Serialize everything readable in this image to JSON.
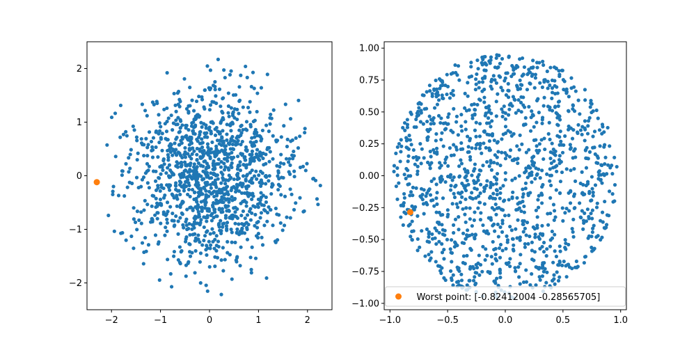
{
  "chart_data": [
    {
      "type": "scatter",
      "name": "left-panel",
      "xlim": [
        -2.5,
        2.5
      ],
      "ylim": [
        -2.5,
        2.5
      ],
      "xticks": [
        -2,
        -1,
        0,
        1,
        2
      ],
      "yticks": [
        -2,
        -1,
        0,
        1,
        2
      ],
      "xtick_labels": [
        "−2",
        "−1",
        "0",
        "1",
        "2"
      ],
      "ytick_labels": [
        "−2",
        "−1",
        "0",
        "1",
        "2"
      ],
      "grid": false,
      "distribution": "dense-center-disk",
      "radius": 2.3,
      "n_points": 1300,
      "highlight": {
        "x": -2.3,
        "y": -0.12
      },
      "series_color": "#1f77b4",
      "highlight_color": "#ff7f0e"
    },
    {
      "type": "scatter",
      "name": "right-panel",
      "xlim": [
        -1.05,
        1.05
      ],
      "ylim": [
        -1.05,
        1.05
      ],
      "xticks": [
        -1.0,
        -0.5,
        0.0,
        0.5,
        1.0
      ],
      "yticks": [
        -1.0,
        -0.75,
        -0.5,
        -0.25,
        0.0,
        0.25,
        0.5,
        0.75,
        1.0
      ],
      "xtick_labels": [
        "−1.0",
        "−0.5",
        "0.0",
        "0.5",
        "1.0"
      ],
      "ytick_labels": [
        "−1.00",
        "−0.75",
        "−0.50",
        "−0.25",
        "0.00",
        "0.25",
        "0.50",
        "0.75",
        "1.00"
      ],
      "grid": false,
      "distribution": "uniform-disk",
      "radius": 0.97,
      "n_points": 1300,
      "highlight": {
        "x": -0.82412004,
        "y": -0.28565705
      },
      "legend": {
        "placement": "lower-center",
        "label": "Worst point: [-0.82412004 -0.28565705]"
      },
      "series_color": "#1f77b4",
      "highlight_color": "#ff7f0e"
    }
  ]
}
